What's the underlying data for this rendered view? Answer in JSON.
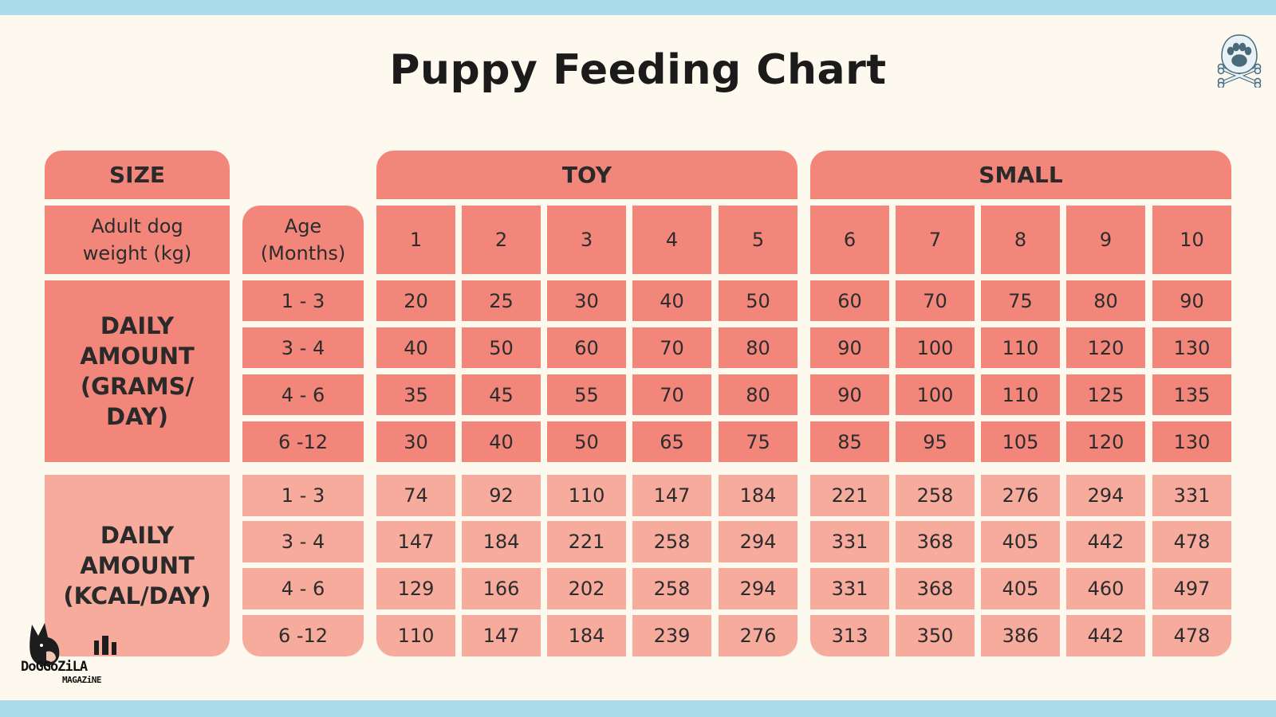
{
  "title": "Puppy Feeding Chart",
  "colors": {
    "dark": "#f2867a",
    "light": "#f7ab9d",
    "background": "#fdf9ee",
    "stripe": "#a9dbeb"
  },
  "header": {
    "size_label": "SIZE",
    "toy_label": "TOY",
    "small_label": "SMALL",
    "weight_label": "Adult dog weight (kg)",
    "age_label": "Age (Months)",
    "weights": [
      "1",
      "2",
      "3",
      "4",
      "5",
      "6",
      "7",
      "8",
      "9",
      "10"
    ]
  },
  "ages": [
    "1 - 3",
    "3 - 4",
    "4 - 6",
    "6 -12"
  ],
  "grams": {
    "label": "DAILY AMOUNT (GRAMS/ DAY)",
    "rows": [
      [
        "20",
        "25",
        "30",
        "40",
        "50",
        "60",
        "70",
        "75",
        "80",
        "90"
      ],
      [
        "40",
        "50",
        "60",
        "70",
        "80",
        "90",
        "100",
        "110",
        "120",
        "130"
      ],
      [
        "35",
        "45",
        "55",
        "70",
        "80",
        "90",
        "100",
        "110",
        "125",
        "135"
      ],
      [
        "30",
        "40",
        "50",
        "65",
        "75",
        "85",
        "95",
        "105",
        "120",
        "130"
      ]
    ]
  },
  "kcal": {
    "label": "DAILY AMOUNT (KCAL/DAY)",
    "rows": [
      [
        "74",
        "92",
        "110",
        "147",
        "184",
        "221",
        "258",
        "276",
        "294",
        "331"
      ],
      [
        "147",
        "184",
        "221",
        "258",
        "294",
        "331",
        "368",
        "405",
        "442",
        "478"
      ],
      [
        "129",
        "166",
        "202",
        "258",
        "294",
        "331",
        "368",
        "405",
        "460",
        "497"
      ],
      [
        "110",
        "147",
        "184",
        "239",
        "276",
        "313",
        "350",
        "386",
        "442",
        "478"
      ]
    ]
  },
  "logo": {
    "line1": "DoGGoZiLA",
    "line2": "MAGAZiNE",
    "icon": "dog-mascot-icon"
  },
  "corner_icon": "paw-crossbones-icon"
}
